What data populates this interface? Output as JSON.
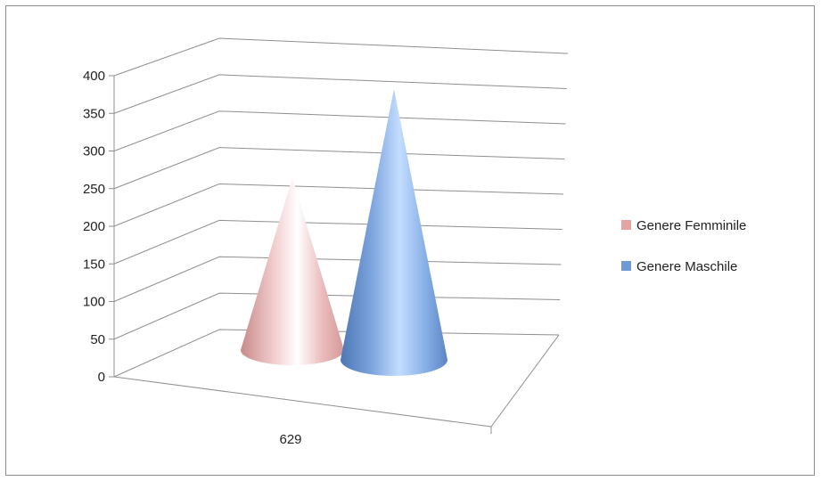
{
  "chart_data": {
    "type": "bar",
    "subtype": "3d-cone",
    "categories": [
      "629"
    ],
    "series": [
      {
        "name": "Genere Femminile",
        "values": [
          247
        ],
        "color": "#e6a3a3"
      },
      {
        "name": "Genere Maschile",
        "values": [
          383
        ],
        "color": "#6f9ad6"
      }
    ],
    "ylim": [
      0,
      400
    ],
    "yticks": [
      "0",
      "50",
      "100",
      "150",
      "200",
      "250",
      "300",
      "350",
      "400"
    ],
    "grid": true,
    "legend_position": "right"
  }
}
